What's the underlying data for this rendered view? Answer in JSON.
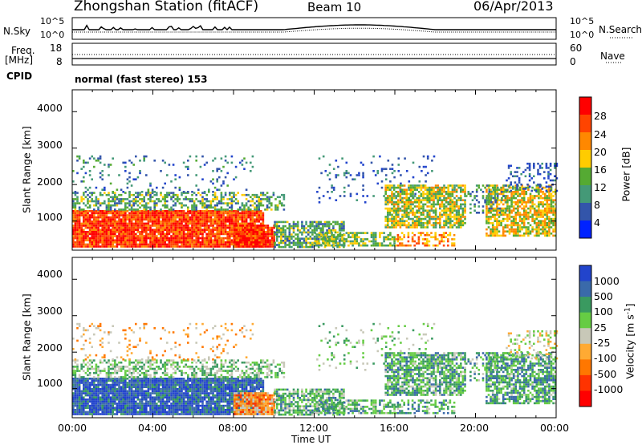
{
  "header": {
    "station": "Zhongshan Station (fitACF)",
    "beam": "Beam 10",
    "date": "06/Apr/2013"
  },
  "strips": {
    "nsky_label": "N.Sky",
    "nsky_ticks": [
      "10^5",
      "10^0"
    ],
    "nsearch_label": "N.Search",
    "nsearch_ticks": [
      "10^5",
      "10^0"
    ],
    "freq_label_1": "Freq.",
    "freq_label_2": "[MHz]",
    "freq_ticks": [
      "18",
      "8"
    ],
    "nave_label": "Nave",
    "nave_ticks": [
      "60",
      "0"
    ],
    "cpid_label": "CPID",
    "cpid_value": "normal (fast stereo) 153"
  },
  "chart_data": [
    {
      "type": "heatmap",
      "name": "power",
      "ylabel": "Slant Range [km]",
      "y_ticks": [
        "4000",
        "3000",
        "2000",
        "1000"
      ],
      "ylim": [
        200,
        4600
      ],
      "colorbar_label": "Power [dB]",
      "colorbar_ticks": [
        "28",
        "24",
        "20",
        "16",
        "12",
        "8",
        "4"
      ],
      "colorbar_colors": [
        "#ff0000",
        "#ff4400",
        "#ff8800",
        "#ffcc00",
        "#55aa33",
        "#449977",
        "#3355aa",
        "#0022ff"
      ],
      "grid": false
    },
    {
      "type": "heatmap",
      "name": "velocity",
      "ylabel": "Slant Range [km]",
      "y_ticks": [
        "4000",
        "3000",
        "2000",
        "1000"
      ],
      "ylim": [
        200,
        4600
      ],
      "colorbar_label": "Velocity [m s",
      "colorbar_sup": "-1",
      "colorbar_label_end": "]",
      "colorbar_ticks": [
        "1000",
        "500",
        "100",
        "25",
        "-25",
        "-100",
        "-500",
        "-1000"
      ],
      "colorbar_colors": [
        "#2244cc",
        "#3a6aaa",
        "#3a9a60",
        "#66cc44",
        "#c8c8b8",
        "#ffaa33",
        "#ff7700",
        "#ff3300",
        "#ff0000"
      ],
      "grid": false
    }
  ],
  "x_axis": {
    "ticks": [
      "00:00",
      "04:00",
      "08:00",
      "12:00",
      "16:00",
      "20:00",
      "00:00"
    ],
    "label": "Time UT"
  }
}
